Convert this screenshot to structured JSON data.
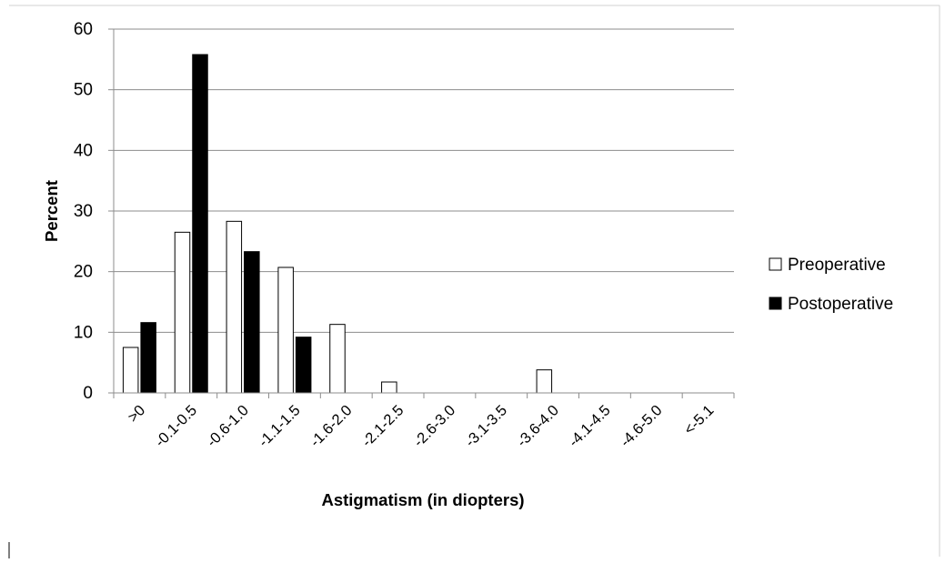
{
  "chart_data": {
    "type": "bar",
    "title": "",
    "xlabel": "Astigmatism (in diopters)",
    "ylabel": "Percent",
    "ylim": [
      0,
      60
    ],
    "yticks": [
      0,
      10,
      20,
      30,
      40,
      50,
      60
    ],
    "grid": true,
    "legend_position": "right",
    "categories": [
      ">0",
      "-0.1-0.5",
      "-0.6-1.0",
      "-1.1-1.5",
      "-1.6-2.0",
      "-2.1-2.5",
      "-2.6-3.0",
      "-3.1-3.5",
      "-3.6-4.0",
      "-4.1-4.5",
      "-4.6-5.0",
      "<-5.1"
    ],
    "series": [
      {
        "name": "Preoperative",
        "color": "#ffffff",
        "values": [
          7.5,
          26.5,
          28.3,
          20.7,
          11.3,
          1.8,
          0,
          0,
          3.8,
          0,
          0,
          0
        ]
      },
      {
        "name": "Postoperative",
        "color": "#000000",
        "values": [
          11.6,
          55.8,
          23.3,
          9.2,
          0,
          0,
          0,
          0,
          0,
          0,
          0,
          0
        ]
      }
    ]
  }
}
